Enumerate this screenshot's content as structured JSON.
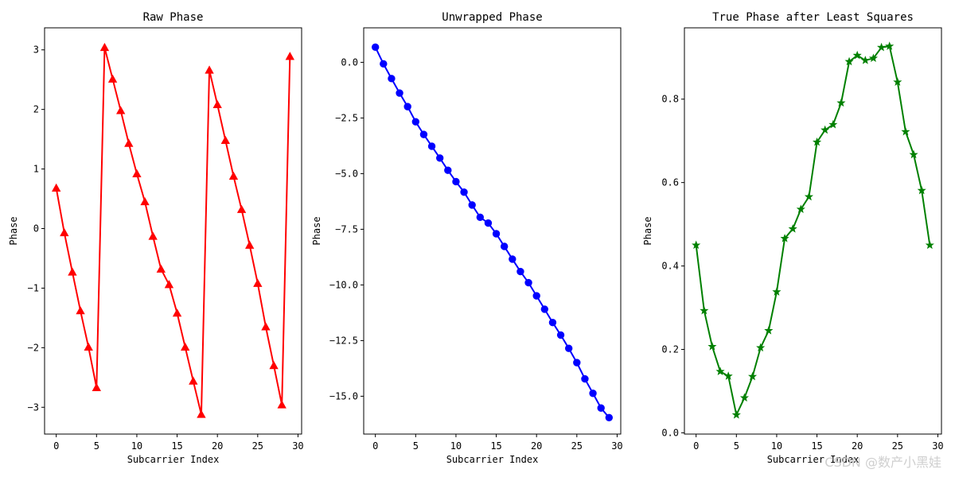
{
  "chart_data": [
    {
      "type": "line",
      "title": "Raw Phase",
      "xlabel": "Subcarrier Index",
      "ylabel": "Phase",
      "xlim": [
        -1.45,
        30.45
      ],
      "ylim": [
        -3.45,
        3.37
      ],
      "xticks": [
        0,
        5,
        10,
        15,
        20,
        25,
        30
      ],
      "yticks": [
        -3,
        -2,
        -1,
        0,
        1,
        2,
        3
      ],
      "ytick_labels": [
        "−3",
        "−2",
        "−1",
        "0",
        "1",
        "2",
        "3"
      ],
      "marker": "triangle",
      "color": "#ff0000",
      "grid": false,
      "series": [
        {
          "x": [
            0,
            1,
            2,
            3,
            4,
            5,
            6,
            7,
            8,
            9,
            10,
            11,
            12,
            13,
            14,
            15,
            16,
            17,
            18,
            19,
            20,
            21,
            22,
            23,
            24,
            25,
            26,
            27,
            28,
            29
          ],
          "values": [
            0.68,
            -0.07,
            -0.73,
            -1.38,
            -1.99,
            -2.67,
            3.04,
            2.51,
            1.98,
            1.43,
            0.92,
            0.45,
            -0.13,
            -0.68,
            -0.94,
            -1.42,
            -1.99,
            -2.56,
            -3.12,
            2.66,
            2.08,
            1.48,
            0.88,
            0.32,
            -0.28,
            -0.92,
            -1.65,
            -2.3,
            -2.96,
            2.89
          ]
        }
      ]
    },
    {
      "type": "line",
      "title": "Unwrapped Phase",
      "xlabel": "Subcarrier Index",
      "ylabel": "Phase",
      "xlim": [
        -1.45,
        30.45
      ],
      "ylim": [
        -16.7,
        1.55
      ],
      "xticks": [
        0,
        5,
        10,
        15,
        20,
        25,
        30
      ],
      "yticks": [
        0.0,
        -2.5,
        -5.0,
        -7.5,
        -10.0,
        -12.5,
        -15.0
      ],
      "ytick_labels": [
        "0.0",
        "−2.5",
        "−5.0",
        "−7.5",
        "−10.0",
        "−12.5",
        "−15.0"
      ],
      "marker": "circle",
      "color": "#0000ff",
      "grid": false,
      "series": [
        {
          "x": [
            0,
            1,
            2,
            3,
            4,
            5,
            6,
            7,
            8,
            9,
            10,
            11,
            12,
            13,
            14,
            15,
            16,
            17,
            18,
            19,
            20,
            21,
            22,
            23,
            24,
            25,
            26,
            27,
            28,
            29
          ],
          "values": [
            0.68,
            -0.07,
            -0.73,
            -1.38,
            -1.99,
            -2.67,
            -3.24,
            -3.77,
            -4.3,
            -4.85,
            -5.36,
            -5.83,
            -6.41,
            -6.96,
            -7.22,
            -7.7,
            -8.27,
            -8.84,
            -9.4,
            -9.9,
            -10.49,
            -11.09,
            -11.69,
            -12.25,
            -12.85,
            -13.49,
            -14.22,
            -14.87,
            -15.53,
            -15.96
          ]
        }
      ]
    },
    {
      "type": "line",
      "title": "True Phase after Least Squares",
      "xlabel": "Subcarrier Index",
      "ylabel": "Phase",
      "xlim": [
        -1.45,
        30.45
      ],
      "ylim": [
        -0.003,
        0.971
      ],
      "xticks": [
        0,
        5,
        10,
        15,
        20,
        25,
        30
      ],
      "yticks": [
        0.0,
        0.2,
        0.4,
        0.6,
        0.8
      ],
      "ytick_labels": [
        "0.0",
        "0.2",
        "0.4",
        "0.6",
        "0.8"
      ],
      "marker": "star",
      "color": "#008000",
      "grid": false,
      "series": [
        {
          "x": [
            0,
            1,
            2,
            3,
            4,
            5,
            6,
            7,
            8,
            9,
            10,
            11,
            12,
            13,
            14,
            15,
            16,
            17,
            18,
            19,
            20,
            21,
            22,
            23,
            24,
            25,
            26,
            27,
            28,
            29
          ],
          "values": [
            0.45,
            0.293,
            0.207,
            0.147,
            0.136,
            0.043,
            0.084,
            0.135,
            0.204,
            0.245,
            0.338,
            0.466,
            0.489,
            0.536,
            0.566,
            0.697,
            0.726,
            0.739,
            0.791,
            0.89,
            0.905,
            0.893,
            0.898,
            0.924,
            0.927,
            0.841,
            0.722,
            0.667,
            0.581,
            0.45
          ]
        }
      ]
    }
  ],
  "watermark": "CSDN @数产小黑娃"
}
